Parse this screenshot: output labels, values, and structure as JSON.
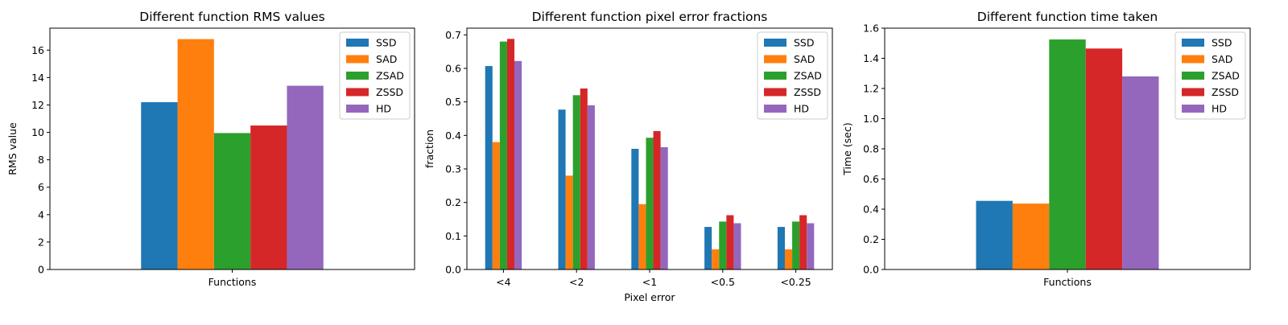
{
  "colors": {
    "SSD": "#1f77b4",
    "SAD": "#ff7f0e",
    "ZSAD": "#2ca02c",
    "ZSSD": "#d62728",
    "HD": "#9467bd"
  },
  "chart_data": [
    {
      "type": "bar",
      "title": "Different function RMS values",
      "xlabel": "",
      "ylabel": "RMS value",
      "categories": [
        "Functions"
      ],
      "series": [
        {
          "name": "SSD",
          "values": [
            12.2
          ]
        },
        {
          "name": "SAD",
          "values": [
            16.8
          ]
        },
        {
          "name": "ZSAD",
          "values": [
            9.95
          ]
        },
        {
          "name": "ZSSD",
          "values": [
            10.5
          ]
        },
        {
          "name": "HD",
          "values": [
            13.4
          ]
        }
      ],
      "ylim": [
        0,
        17.6
      ],
      "yticks": [
        0,
        2,
        4,
        6,
        8,
        10,
        12,
        14,
        16
      ],
      "legend": "top-right",
      "grid": false
    },
    {
      "type": "bar",
      "title": "Different function pixel error fractions",
      "xlabel": "Pixel error",
      "ylabel": "fraction",
      "categories": [
        "<4",
        "<2",
        "<1",
        "<0.5",
        "<0.25"
      ],
      "series": [
        {
          "name": "SSD",
          "values": [
            0.607,
            0.477,
            0.36,
            0.127,
            0.127
          ]
        },
        {
          "name": "SAD",
          "values": [
            0.38,
            0.28,
            0.195,
            0.06,
            0.06
          ]
        },
        {
          "name": "ZSAD",
          "values": [
            0.68,
            0.52,
            0.393,
            0.143,
            0.143
          ]
        },
        {
          "name": "ZSSD",
          "values": [
            0.688,
            0.54,
            0.413,
            0.162,
            0.162
          ]
        },
        {
          "name": "HD",
          "values": [
            0.622,
            0.49,
            0.365,
            0.138,
            0.138
          ]
        }
      ],
      "ylim": [
        0,
        0.72
      ],
      "yticks": [
        0.0,
        0.1,
        0.2,
        0.3,
        0.4,
        0.5,
        0.6,
        0.7
      ],
      "legend": "top-right",
      "grid": false
    },
    {
      "type": "bar",
      "title": "Different function time taken",
      "xlabel": "",
      "ylabel": "Time (sec)",
      "categories": [
        "Functions"
      ],
      "series": [
        {
          "name": "SSD",
          "values": [
            0.455
          ]
        },
        {
          "name": "SAD",
          "values": [
            0.437
          ]
        },
        {
          "name": "ZSAD",
          "values": [
            1.525
          ]
        },
        {
          "name": "ZSSD",
          "values": [
            1.465
          ]
        },
        {
          "name": "HD",
          "values": [
            1.28
          ]
        }
      ],
      "ylim": [
        0,
        1.6
      ],
      "yticks": [
        0.0,
        0.2,
        0.4,
        0.6,
        0.8,
        1.0,
        1.2,
        1.4,
        1.6
      ],
      "legend": "top-right",
      "grid": false
    }
  ]
}
